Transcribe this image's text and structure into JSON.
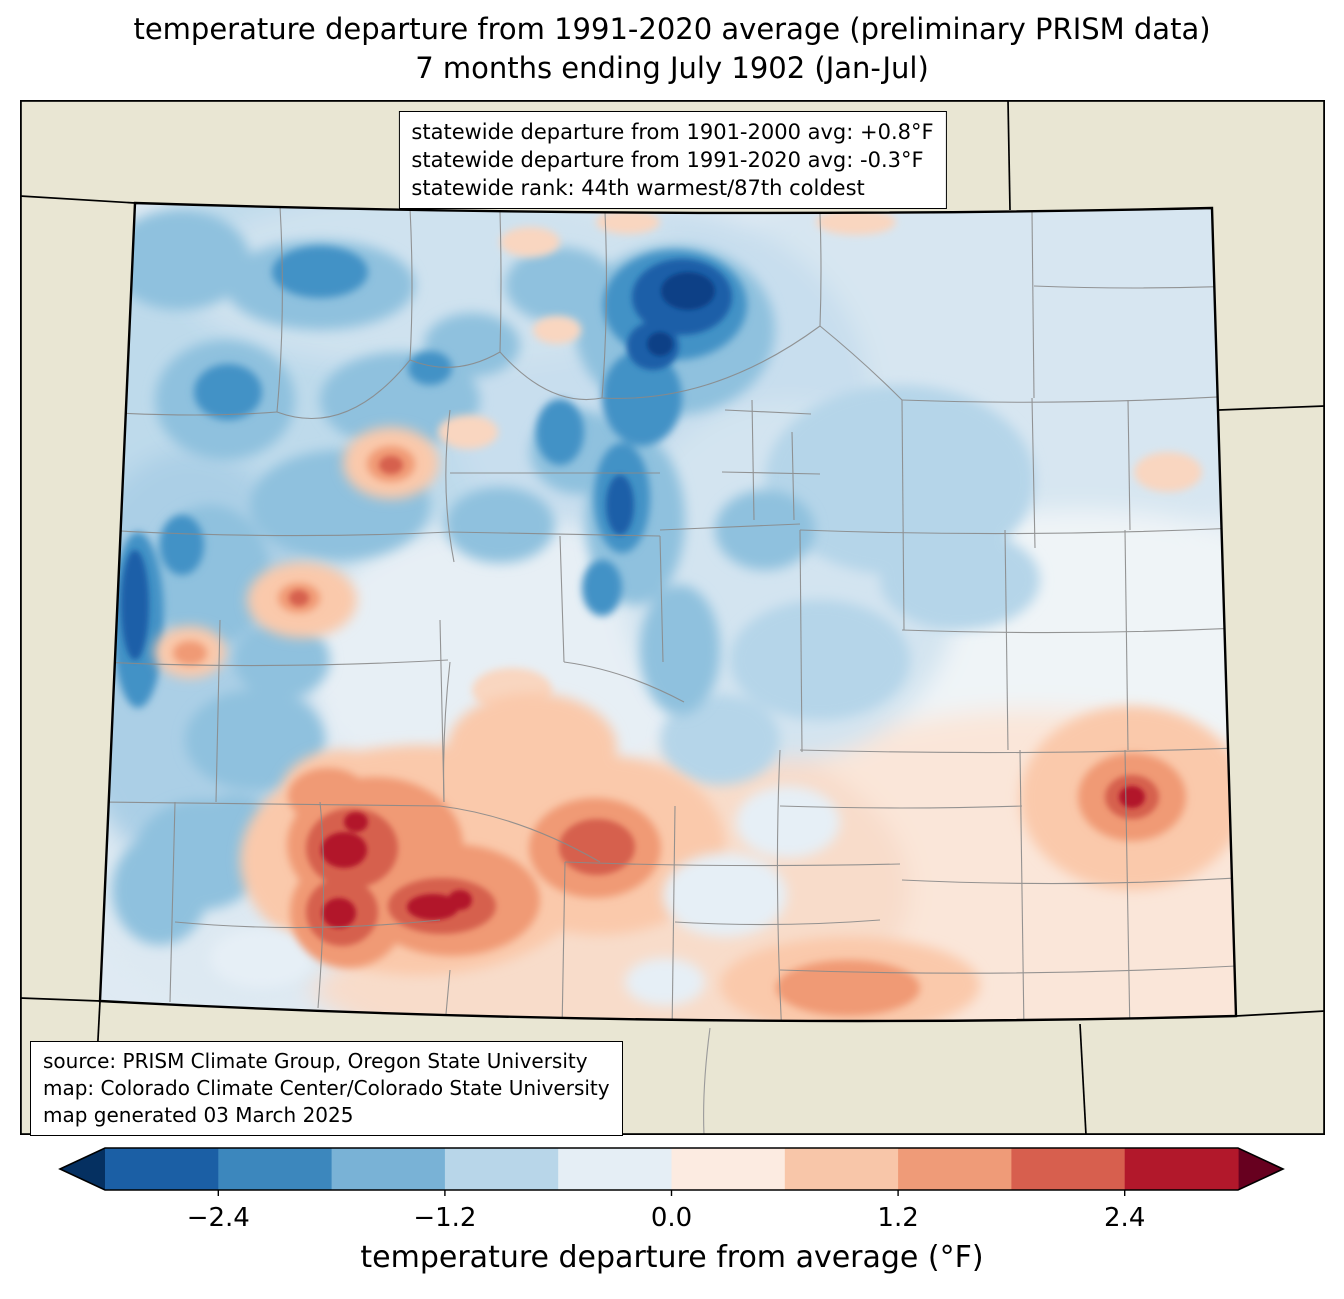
{
  "title": {
    "line1": "temperature departure from 1991-2020 average (preliminary PRISM data)",
    "line2": "7 months ending July 1902 (Jan-Jul)"
  },
  "stats_box": {
    "lines": [
      "statewide departure from 1901-2000 avg: +0.8°F",
      "statewide departure from 1991-2020 avg: -0.3°F",
      "statewide rank: 44th warmest/87th coldest"
    ]
  },
  "source_box": {
    "lines": [
      "source: PRISM Climate Group, Oregon State University",
      "map: Colorado Climate Center/Colorado State University",
      "map generated 03 March 2025"
    ]
  },
  "colorbar": {
    "label": "temperature departure from average (°F)",
    "range": [
      -3.0,
      3.0
    ],
    "ticks": [
      {
        "value": -2.4,
        "label": "−2.4"
      },
      {
        "value": -1.2,
        "label": "−1.2"
      },
      {
        "value": 0.0,
        "label": "0.0"
      },
      {
        "value": 1.2,
        "label": "1.2"
      },
      {
        "value": 2.4,
        "label": "2.4"
      }
    ],
    "segment_colors": [
      "#1b5fa5",
      "#3c87bd",
      "#79b2d6",
      "#b8d6e9",
      "#e5eef5",
      "#fcebe1",
      "#f8c6a9",
      "#ef9b78",
      "#d75f4e",
      "#b2182b"
    ],
    "under_color": "#053061",
    "over_color": "#67001f"
  },
  "map": {
    "region": "Colorado",
    "outside_color": "#e9e6d3",
    "base_anomaly_color": "#dfeaf3"
  },
  "chart_data": {
    "type": "heatmap",
    "title": "temperature departure from 1991-2020 average (preliminary PRISM data) — 7 months ending July 1902 (Jan-Jul)",
    "region": "Colorado",
    "variable": "temperature departure from average (°F)",
    "scale_range": [
      -3.0,
      3.0
    ],
    "scale_ticks": [
      -2.4,
      -1.2,
      0.0,
      1.2,
      2.4
    ],
    "statewide_departure_from_1901_2000_avg_F": 0.8,
    "statewide_departure_from_1991_2020_avg_F": -0.3,
    "statewide_rank": "44th warmest/87th coldest"
  }
}
